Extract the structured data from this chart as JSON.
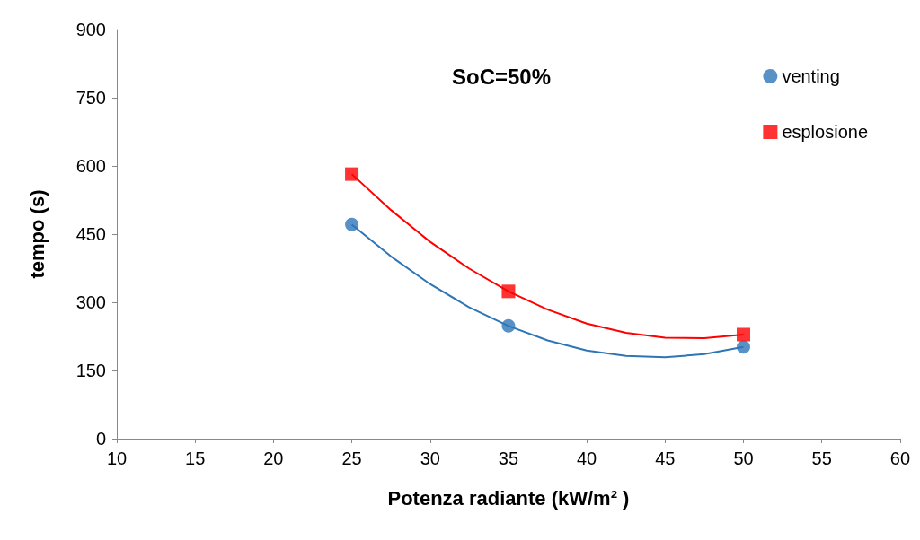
{
  "chart_data": {
    "type": "scatter",
    "title": "SoC=50%",
    "xlabel": "Potenza radiante (kW/m² )",
    "ylabel": "tempo (s)",
    "xlim": [
      10,
      60
    ],
    "xticks": [
      10,
      15,
      20,
      25,
      30,
      35,
      40,
      45,
      50,
      55,
      60
    ],
    "ylim": [
      0,
      900
    ],
    "yticks": [
      0,
      150,
      300,
      450,
      600,
      750,
      900
    ],
    "grid": false,
    "legend": "top right",
    "series": [
      {
        "name": "venting",
        "color": "#2e75b6",
        "marker": "circle",
        "x": [
          25,
          35,
          50
        ],
        "values": [
          471,
          248,
          202
        ]
      },
      {
        "name": "esplosione",
        "color": "#ff0000",
        "marker": "square",
        "x": [
          25,
          35,
          50
        ],
        "values": [
          582,
          324,
          229
        ]
      },
      {
        "type": "line",
        "color": "#2e75b6",
        "marker": "none",
        "x": [
          25,
          27.5,
          30,
          32.5,
          35,
          37.5,
          40,
          42.5,
          45,
          47.5,
          50
        ],
        "values": [
          471,
          401,
          340,
          289,
          248,
          216,
          194,
          182,
          179,
          186,
          202
        ]
      },
      {
        "type": "line",
        "color": "#ff0000",
        "marker": "none",
        "x": [
          25,
          27.5,
          30,
          32.5,
          35,
          37.5,
          40,
          42.5,
          45,
          47.5,
          50
        ],
        "values": [
          582,
          503,
          433,
          374,
          324,
          284,
          253,
          233,
          222,
          221,
          229
        ]
      }
    ]
  }
}
